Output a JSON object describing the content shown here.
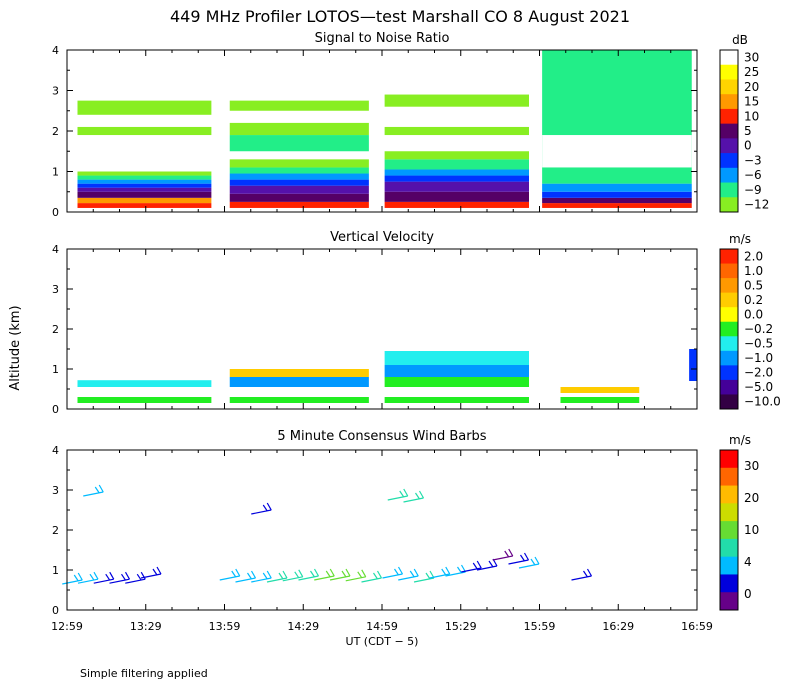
{
  "title": "449 MHz Profiler LOTOS—test Marshall CO  8 August 2021",
  "footnote": "Simple filtering applied",
  "chart_data": [
    {
      "type": "heatmap",
      "title": "Signal to Noise Ratio",
      "ylim": [
        0,
        4
      ],
      "yticks": [
        "0",
        "1",
        "2",
        "3",
        "4"
      ],
      "xlim": [
        0,
        240
      ],
      "colorbar": {
        "unit": "dB",
        "levels": [
          "30",
          "25",
          "20",
          "15",
          "10",
          "5",
          "0",
          "−3",
          "−6",
          "−9",
          "−12"
        ],
        "colors": [
          "#ffffff",
          "#ffff00",
          "#ffd400",
          "#ff9900",
          "#ff2200",
          "#550066",
          "#5511aa",
          "#0033ff",
          "#0099ff",
          "#22ee88",
          "#88ee22"
        ]
      },
      "blocks": [
        {
          "x0": 4,
          "x1": 55,
          "cells": [
            {
              "y0": 0.1,
              "y1": 0.22,
              "c": "#ff2200"
            },
            {
              "y0": 0.22,
              "y1": 0.35,
              "c": "#ff9900"
            },
            {
              "y0": 0.35,
              "y1": 0.5,
              "c": "#550066"
            },
            {
              "y0": 0.5,
              "y1": 0.6,
              "c": "#5511aa"
            },
            {
              "y0": 0.6,
              "y1": 0.7,
              "c": "#0033ff"
            },
            {
              "y0": 0.7,
              "y1": 0.8,
              "c": "#0099ff"
            },
            {
              "y0": 0.8,
              "y1": 0.9,
              "c": "#22ee88"
            },
            {
              "y0": 0.9,
              "y1": 1.0,
              "c": "#88ee22"
            },
            {
              "y0": 1.9,
              "y1": 2.1,
              "c": "#88ee22"
            },
            {
              "y0": 2.4,
              "y1": 2.75,
              "c": "#88ee22"
            }
          ]
        },
        {
          "x0": 62,
          "x1": 115,
          "cells": [
            {
              "y0": 0.1,
              "y1": 0.25,
              "c": "#ff2200"
            },
            {
              "y0": 0.25,
              "y1": 0.45,
              "c": "#550066"
            },
            {
              "y0": 0.45,
              "y1": 0.65,
              "c": "#5511aa"
            },
            {
              "y0": 0.65,
              "y1": 0.8,
              "c": "#0033ff"
            },
            {
              "y0": 0.8,
              "y1": 0.95,
              "c": "#0099ff"
            },
            {
              "y0": 0.95,
              "y1": 1.1,
              "c": "#22ee88"
            },
            {
              "y0": 1.1,
              "y1": 1.3,
              "c": "#88ee22"
            },
            {
              "y0": 1.5,
              "y1": 1.9,
              "c": "#22ee88"
            },
            {
              "y0": 1.9,
              "y1": 2.2,
              "c": "#88ee22"
            },
            {
              "y0": 2.5,
              "y1": 2.75,
              "c": "#88ee22"
            }
          ]
        },
        {
          "x0": 121,
          "x1": 176,
          "cells": [
            {
              "y0": 0.1,
              "y1": 0.25,
              "c": "#ff2200"
            },
            {
              "y0": 0.25,
              "y1": 0.5,
              "c": "#550066"
            },
            {
              "y0": 0.5,
              "y1": 0.75,
              "c": "#5511aa"
            },
            {
              "y0": 0.75,
              "y1": 0.9,
              "c": "#0033ff"
            },
            {
              "y0": 0.9,
              "y1": 1.05,
              "c": "#0099ff"
            },
            {
              "y0": 1.05,
              "y1": 1.3,
              "c": "#22ee88"
            },
            {
              "y0": 1.3,
              "y1": 1.5,
              "c": "#88ee22"
            },
            {
              "y0": 1.9,
              "y1": 2.1,
              "c": "#88ee22"
            },
            {
              "y0": 2.6,
              "y1": 2.9,
              "c": "#88ee22"
            }
          ]
        },
        {
          "x0": 181,
          "x1": 238,
          "cells": [
            {
              "y0": 0.1,
              "y1": 0.22,
              "c": "#ff2200"
            },
            {
              "y0": 0.22,
              "y1": 0.35,
              "c": "#550066"
            },
            {
              "y0": 0.35,
              "y1": 0.5,
              "c": "#0033ff"
            },
            {
              "y0": 0.5,
              "y1": 0.7,
              "c": "#0099ff"
            },
            {
              "y0": 0.7,
              "y1": 4.0,
              "c": "#22ee88"
            },
            {
              "y0": 1.1,
              "y1": 1.9,
              "c": "#ffffff"
            }
          ]
        }
      ]
    },
    {
      "type": "heatmap",
      "title": "Vertical Velocity",
      "ylabel": "Altitude (km)",
      "ylim": [
        0,
        4
      ],
      "yticks": [
        "0",
        "1",
        "2",
        "3",
        "4"
      ],
      "xlim": [
        0,
        240
      ],
      "colorbar": {
        "unit": "m/s",
        "levels": [
          "2.0",
          "1.0",
          "0.5",
          "0.2",
          "0.0",
          "−0.2",
          "−0.5",
          "−1.0",
          "−2.0",
          "−5.0",
          "−10.0"
        ],
        "colors": [
          "#ff2200",
          "#ff6600",
          "#ff9900",
          "#ffcc00",
          "#ffff00",
          "#22ee22",
          "#22eeee",
          "#0099ff",
          "#0033ff",
          "#440099",
          "#330044"
        ]
      },
      "blocks": [
        {
          "x0": 4,
          "x1": 55,
          "cells": [
            {
              "y0": 0.15,
              "y1": 0.3,
              "c": "#22ee22"
            },
            {
              "y0": 0.55,
              "y1": 0.72,
              "c": "#22eeee"
            }
          ]
        },
        {
          "x0": 62,
          "x1": 115,
          "cells": [
            {
              "y0": 0.15,
              "y1": 0.3,
              "c": "#22ee22"
            },
            {
              "y0": 0.55,
              "y1": 0.8,
              "c": "#0099ff"
            },
            {
              "y0": 0.8,
              "y1": 1.0,
              "c": "#ffcc00"
            }
          ]
        },
        {
          "x0": 121,
          "x1": 176,
          "cells": [
            {
              "y0": 0.15,
              "y1": 0.3,
              "c": "#22ee22"
            },
            {
              "y0": 0.55,
              "y1": 0.8,
              "c": "#22ee22"
            },
            {
              "y0": 0.8,
              "y1": 1.1,
              "c": "#0099ff"
            },
            {
              "y0": 1.1,
              "y1": 1.45,
              "c": "#22eeee"
            }
          ]
        },
        {
          "x0": 188,
          "x1": 218,
          "cells": [
            {
              "y0": 0.15,
              "y1": 0.3,
              "c": "#22ee22"
            },
            {
              "y0": 0.4,
              "y1": 0.55,
              "c": "#ffcc00"
            }
          ]
        },
        {
          "x0": 237,
          "x1": 240,
          "cells": [
            {
              "y0": 0.7,
              "y1": 1.5,
              "c": "#0033ff"
            }
          ]
        }
      ]
    },
    {
      "type": "wind_barbs",
      "title": "5 Minute Consensus Wind Barbs",
      "xlabel": "UT  (CDT − 5)",
      "ylim": [
        0,
        4
      ],
      "yticks": [
        "0",
        "1",
        "2",
        "3",
        "4"
      ],
      "xlim": [
        0,
        240
      ],
      "xticks": [
        "12:59",
        "13:29",
        "13:59",
        "14:29",
        "14:59",
        "15:29",
        "15:59",
        "16:29",
        "16:59"
      ],
      "xtick_values": [
        0,
        30,
        60,
        90,
        120,
        150,
        180,
        210,
        240
      ],
      "colorbar": {
        "unit": "m/s",
        "levels": [
          "30",
          "20",
          "10",
          "4",
          "0"
        ],
        "colors": [
          "#ff0000",
          "#ff6600",
          "#ffbb00",
          "#ccdd00",
          "#66dd33",
          "#22ddaa",
          "#00bbff",
          "#0000dd",
          "#660088"
        ]
      },
      "barbs": [
        {
          "t": 2,
          "alt": 0.7,
          "c": "#00bbff"
        },
        {
          "t": 8,
          "alt": 0.72,
          "c": "#00bbff"
        },
        {
          "t": 14,
          "alt": 0.72,
          "c": "#0000dd"
        },
        {
          "t": 20,
          "alt": 0.72,
          "c": "#0000dd"
        },
        {
          "t": 26,
          "alt": 0.72,
          "c": "#0000dd"
        },
        {
          "t": 32,
          "alt": 0.85,
          "c": "#0000dd"
        },
        {
          "t": 10,
          "alt": 2.9,
          "c": "#00bbff"
        },
        {
          "t": 62,
          "alt": 0.8,
          "c": "#00bbff"
        },
        {
          "t": 68,
          "alt": 0.75,
          "c": "#00bbff"
        },
        {
          "t": 74,
          "alt": 0.75,
          "c": "#00bbff"
        },
        {
          "t": 80,
          "alt": 0.75,
          "c": "#22ddaa"
        },
        {
          "t": 86,
          "alt": 0.78,
          "c": "#22ddaa"
        },
        {
          "t": 92,
          "alt": 0.8,
          "c": "#22ddaa"
        },
        {
          "t": 98,
          "alt": 0.8,
          "c": "#66dd33"
        },
        {
          "t": 104,
          "alt": 0.8,
          "c": "#66dd33"
        },
        {
          "t": 110,
          "alt": 0.78,
          "c": "#66dd33"
        },
        {
          "t": 116,
          "alt": 0.75,
          "c": "#22ddaa"
        },
        {
          "t": 74,
          "alt": 2.45,
          "c": "#0000dd"
        },
        {
          "t": 126,
          "alt": 2.8,
          "c": "#22ddaa"
        },
        {
          "t": 132,
          "alt": 2.75,
          "c": "#22ddaa"
        },
        {
          "t": 124,
          "alt": 0.85,
          "c": "#00bbff"
        },
        {
          "t": 130,
          "alt": 0.8,
          "c": "#00bbff"
        },
        {
          "t": 136,
          "alt": 0.75,
          "c": "#22ddaa"
        },
        {
          "t": 142,
          "alt": 0.85,
          "c": "#00bbff"
        },
        {
          "t": 148,
          "alt": 0.9,
          "c": "#00bbff"
        },
        {
          "t": 154,
          "alt": 1.0,
          "c": "#0000dd"
        },
        {
          "t": 160,
          "alt": 1.05,
          "c": "#0000dd"
        },
        {
          "t": 166,
          "alt": 1.3,
          "c": "#660088"
        },
        {
          "t": 172,
          "alt": 1.2,
          "c": "#0000dd"
        },
        {
          "t": 176,
          "alt": 1.1,
          "c": "#00bbff"
        },
        {
          "t": 196,
          "alt": 0.8,
          "c": "#0000dd"
        }
      ]
    }
  ]
}
